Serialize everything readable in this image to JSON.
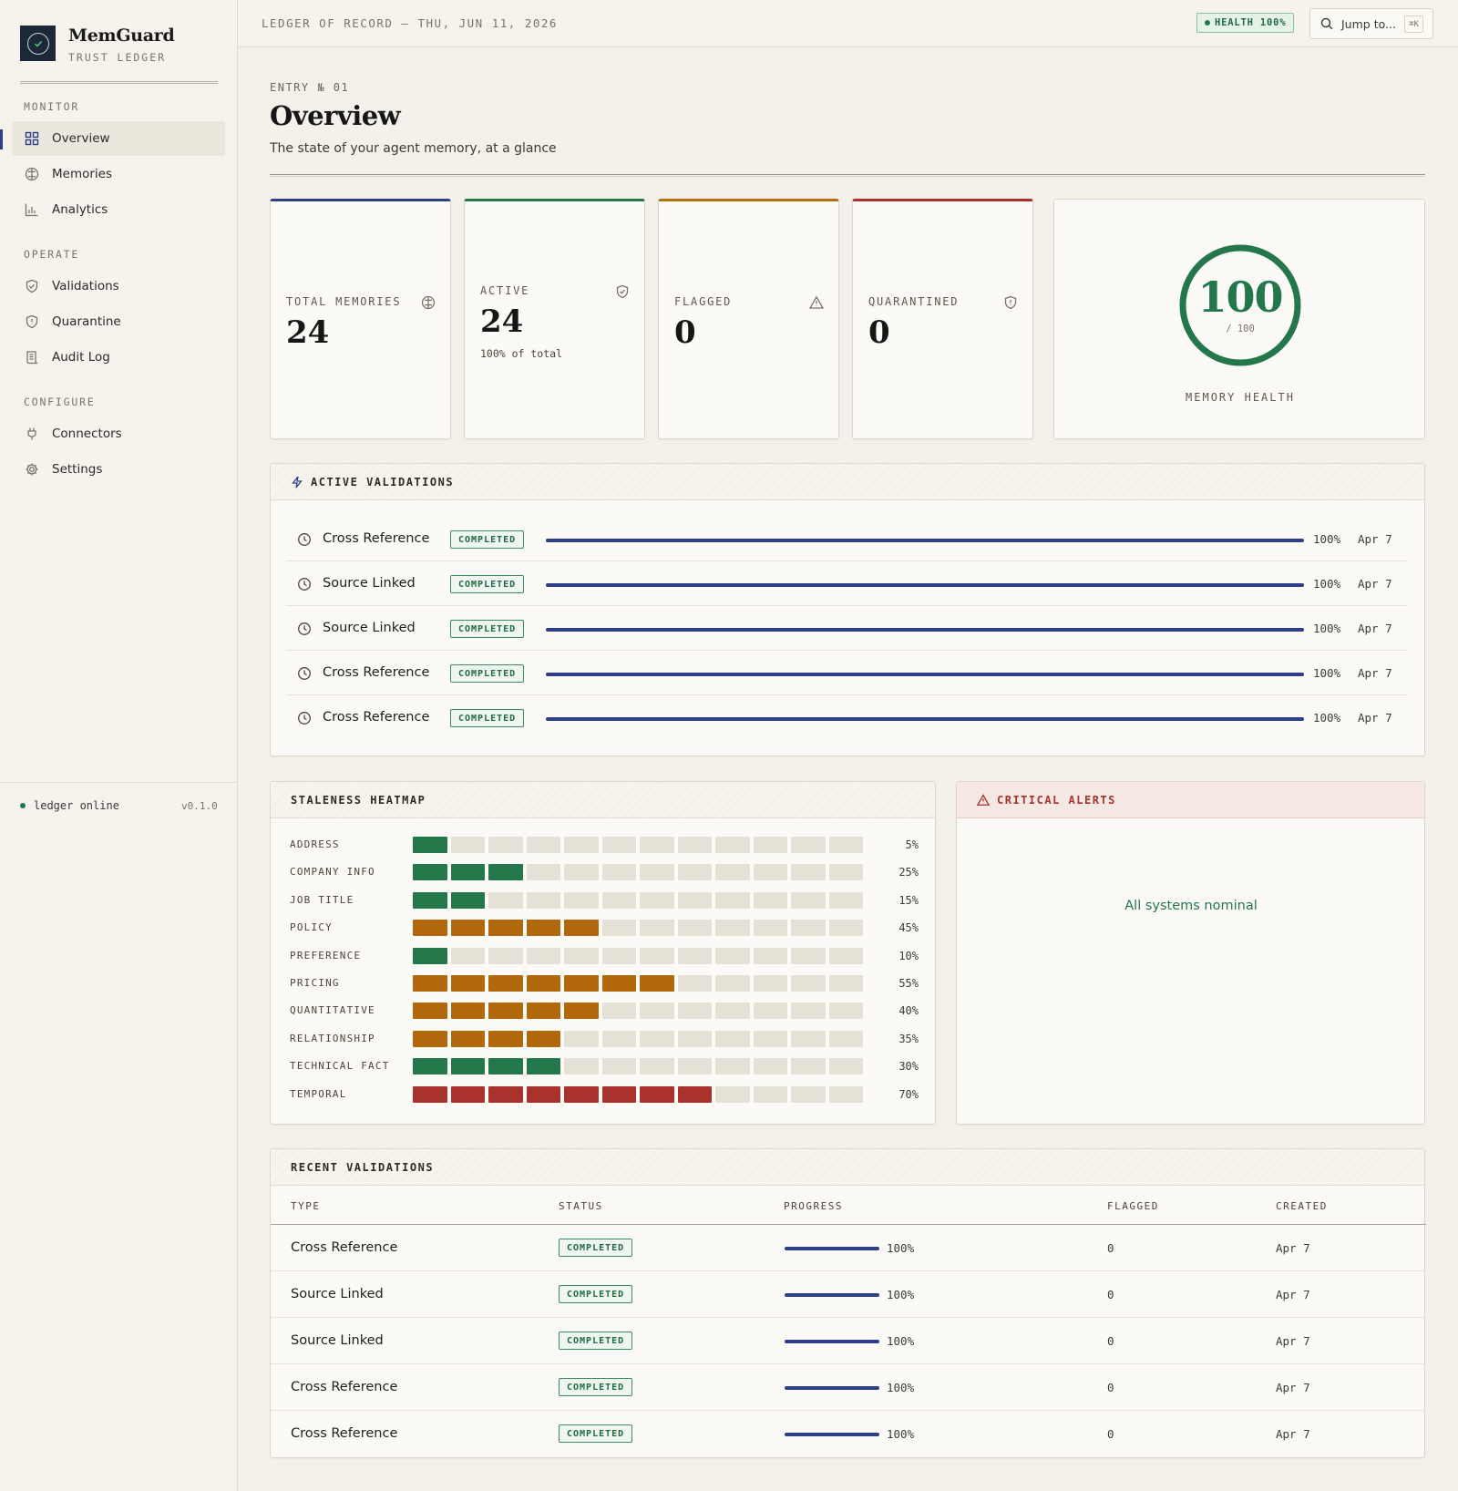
{
  "app": {
    "name": "MemGuard",
    "subtitle": "TRUST LEDGER"
  },
  "sidebar": {
    "sections": [
      {
        "title": "MONITOR",
        "items": [
          {
            "label": "Overview",
            "icon": "grid-icon",
            "active": true
          },
          {
            "label": "Memories",
            "icon": "brain-icon"
          },
          {
            "label": "Analytics",
            "icon": "bar-chart-icon"
          }
        ]
      },
      {
        "title": "OPERATE",
        "items": [
          {
            "label": "Validations",
            "icon": "shield-check-icon"
          },
          {
            "label": "Quarantine",
            "icon": "shield-alert-icon"
          },
          {
            "label": "Audit Log",
            "icon": "scroll-icon"
          }
        ]
      },
      {
        "title": "CONFIGURE",
        "items": [
          {
            "label": "Connectors",
            "icon": "plug-icon"
          },
          {
            "label": "Settings",
            "icon": "gear-icon"
          }
        ]
      }
    ],
    "footer": {
      "status": "ledger online",
      "version": "v0.1.0"
    }
  },
  "topbar": {
    "title": "LEDGER OF RECORD — THU, JUN 11, 2026",
    "health_badge": "HEALTH 100%",
    "jump_label": "Jump to...",
    "jump_shortcut": "⌘K"
  },
  "header": {
    "entry": "ENTRY № 01",
    "title": "Overview",
    "subtitle": "The state of your agent memory, at a glance"
  },
  "stats": {
    "total": {
      "label": "TOTAL MEMORIES",
      "value": "24",
      "icon": "brain-icon",
      "accent": "#2d3f8a"
    },
    "active": {
      "label": "ACTIVE",
      "value": "24",
      "sub": "100% of total",
      "icon": "shield-check-icon",
      "accent": "#23774a"
    },
    "flagged": {
      "label": "FLAGGED",
      "value": "0",
      "icon": "warning-icon",
      "accent": "#b5700d"
    },
    "quarantined": {
      "label": "QUARANTINED",
      "value": "0",
      "icon": "shield-alert-icon",
      "accent": "#a9332c"
    }
  },
  "health": {
    "value": "100",
    "of": "/ 100",
    "label": "MEMORY HEALTH",
    "fraction": 1.0,
    "color": "#23774a"
  },
  "active_validations": {
    "title": "ACTIVE VALIDATIONS",
    "rows": [
      {
        "type": "Cross Reference",
        "status": "COMPLETED",
        "progress": 100,
        "pct": "100%",
        "date": "Apr 7"
      },
      {
        "type": "Source Linked",
        "status": "COMPLETED",
        "progress": 100,
        "pct": "100%",
        "date": "Apr 7"
      },
      {
        "type": "Source Linked",
        "status": "COMPLETED",
        "progress": 100,
        "pct": "100%",
        "date": "Apr 7"
      },
      {
        "type": "Cross Reference",
        "status": "COMPLETED",
        "progress": 100,
        "pct": "100%",
        "date": "Apr 7"
      },
      {
        "type": "Cross Reference",
        "status": "COMPLETED",
        "progress": 100,
        "pct": "100%",
        "date": "Apr 7"
      }
    ]
  },
  "heatmap": {
    "title": "STALENESS HEATMAP",
    "cells_total": 12,
    "colors": {
      "green": "#23774a",
      "amber": "#b0680a",
      "red": "#a9332c",
      "empty": "#e6e1d6"
    },
    "rows": [
      {
        "label": "ADDRESS",
        "filled": 1,
        "color": "green",
        "pct": "5%"
      },
      {
        "label": "COMPANY INFO",
        "filled": 3,
        "color": "green",
        "pct": "25%"
      },
      {
        "label": "JOB TITLE",
        "filled": 2,
        "color": "green",
        "pct": "15%"
      },
      {
        "label": "POLICY",
        "filled": 5,
        "color": "amber",
        "pct": "45%"
      },
      {
        "label": "PREFERENCE",
        "filled": 1,
        "color": "green",
        "pct": "10%"
      },
      {
        "label": "PRICING",
        "filled": 7,
        "color": "amber",
        "pct": "55%"
      },
      {
        "label": "QUANTITATIVE",
        "filled": 5,
        "color": "amber",
        "pct": "40%"
      },
      {
        "label": "RELATIONSHIP",
        "filled": 4,
        "color": "amber",
        "pct": "35%"
      },
      {
        "label": "TECHNICAL FACT",
        "filled": 4,
        "color": "green",
        "pct": "30%"
      },
      {
        "label": "TEMPORAL",
        "filled": 8,
        "color": "red",
        "pct": "70%"
      }
    ]
  },
  "alerts": {
    "title": "CRITICAL ALERTS",
    "message": "All systems nominal"
  },
  "recent_validations": {
    "title": "RECENT VALIDATIONS",
    "columns": [
      "TYPE",
      "STATUS",
      "PROGRESS",
      "FLAGGED",
      "CREATED"
    ],
    "rows": [
      {
        "type": "Cross Reference",
        "status": "COMPLETED",
        "progress": 100,
        "pct": "100%",
        "flagged": "0",
        "created": "Apr 7"
      },
      {
        "type": "Source Linked",
        "status": "COMPLETED",
        "progress": 100,
        "pct": "100%",
        "flagged": "0",
        "created": "Apr 7"
      },
      {
        "type": "Source Linked",
        "status": "COMPLETED",
        "progress": 100,
        "pct": "100%",
        "flagged": "0",
        "created": "Apr 7"
      },
      {
        "type": "Cross Reference",
        "status": "COMPLETED",
        "progress": 100,
        "pct": "100%",
        "flagged": "0",
        "created": "Apr 7"
      },
      {
        "type": "Cross Reference",
        "status": "COMPLETED",
        "progress": 100,
        "pct": "100%",
        "flagged": "0",
        "created": "Apr 7"
      }
    ]
  }
}
